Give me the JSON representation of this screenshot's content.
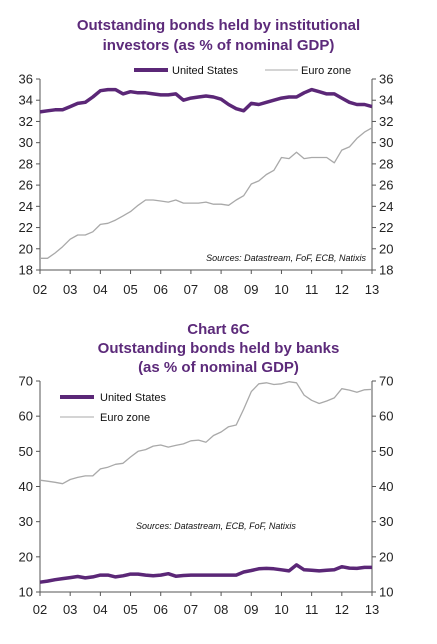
{
  "chart_data": [
    {
      "type": "line",
      "title": "Outstanding bonds held by institutional investors (as % of nominal GDP)",
      "title_lines": [
        "Outstanding bonds held by institutional",
        "investors (as % of nominal GDP)"
      ],
      "x_tick_labels": [
        "02",
        "03",
        "04",
        "05",
        "06",
        "07",
        "08",
        "09",
        "10",
        "11",
        "12",
        "13"
      ],
      "ylim": [
        18,
        36
      ],
      "y_ticks": [
        18,
        20,
        22,
        24,
        26,
        28,
        30,
        32,
        34,
        36
      ],
      "grid": false,
      "legend_position": "top",
      "source": "Sources: Datastream, FoF, ECB, Natixis",
      "series": [
        {
          "name": "United States",
          "color": "#5b2777",
          "x": [
            2002.0,
            2002.25,
            2002.5,
            2002.75,
            2003.0,
            2003.25,
            2003.5,
            2003.75,
            2004.0,
            2004.25,
            2004.5,
            2004.75,
            2005.0,
            2005.25,
            2005.5,
            2005.75,
            2006.0,
            2006.25,
            2006.5,
            2006.75,
            2007.0,
            2007.25,
            2007.5,
            2007.75,
            2008.0,
            2008.25,
            2008.5,
            2008.75,
            2009.0,
            2009.25,
            2009.5,
            2009.75,
            2010.0,
            2010.25,
            2010.5,
            2010.75,
            2011.0,
            2011.25,
            2011.5,
            2011.75,
            2012.0,
            2012.25,
            2012.5,
            2012.75,
            2013.0
          ],
          "values": [
            32.9,
            33.0,
            33.1,
            33.1,
            33.4,
            33.7,
            33.8,
            34.3,
            34.9,
            35.0,
            35.0,
            34.6,
            34.8,
            34.7,
            34.7,
            34.6,
            34.5,
            34.5,
            34.6,
            34.0,
            34.2,
            34.3,
            34.4,
            34.3,
            34.1,
            33.6,
            33.2,
            33.0,
            33.7,
            33.6,
            33.8,
            34.0,
            34.2,
            34.3,
            34.3,
            34.7,
            35.0,
            34.8,
            34.6,
            34.6,
            34.2,
            33.8,
            33.6,
            33.6,
            33.4
          ]
        },
        {
          "name": "Euro zone",
          "color": "#a9a9a9",
          "x": [
            2002.0,
            2002.25,
            2002.5,
            2002.75,
            2003.0,
            2003.25,
            2003.5,
            2003.75,
            2004.0,
            2004.25,
            2004.5,
            2004.75,
            2005.0,
            2005.25,
            2005.5,
            2005.75,
            2006.0,
            2006.25,
            2006.5,
            2006.75,
            2007.0,
            2007.25,
            2007.5,
            2007.75,
            2008.0,
            2008.25,
            2008.5,
            2008.75,
            2009.0,
            2009.25,
            2009.5,
            2009.75,
            2010.0,
            2010.25,
            2010.5,
            2010.75,
            2011.0,
            2011.25,
            2011.5,
            2011.75,
            2012.0,
            2012.25,
            2012.5,
            2012.75,
            2013.0
          ],
          "values": [
            19.1,
            19.1,
            19.6,
            20.2,
            20.9,
            21.3,
            21.3,
            21.6,
            22.3,
            22.4,
            22.7,
            23.1,
            23.5,
            24.1,
            24.6,
            24.6,
            24.5,
            24.4,
            24.6,
            24.3,
            24.3,
            24.3,
            24.4,
            24.2,
            24.2,
            24.1,
            24.6,
            25.0,
            26.1,
            26.4,
            27.0,
            27.4,
            28.6,
            28.5,
            29.1,
            28.5,
            28.6,
            28.6,
            28.6,
            28.1,
            29.3,
            29.6,
            30.4,
            31.0,
            31.4
          ]
        }
      ]
    },
    {
      "type": "line",
      "title": "Chart 6C Outstanding bonds held by banks (as % of nominal GDP)",
      "title_lines": [
        "Chart 6C",
        "Outstanding bonds held by banks",
        "(as % of nominal GDP)"
      ],
      "x_tick_labels": [
        "02",
        "03",
        "04",
        "05",
        "06",
        "07",
        "08",
        "09",
        "10",
        "11",
        "12",
        "13"
      ],
      "ylim": [
        10,
        70
      ],
      "y_ticks": [
        10,
        20,
        30,
        40,
        50,
        60,
        70
      ],
      "grid": false,
      "legend_position": "top-left",
      "source": "Sources: Datastream, ECB, FoF, Natixis",
      "series": [
        {
          "name": "United States",
          "color": "#5b2777",
          "x": [
            2002.0,
            2002.25,
            2002.5,
            2002.75,
            2003.0,
            2003.25,
            2003.5,
            2003.75,
            2004.0,
            2004.25,
            2004.5,
            2004.75,
            2005.0,
            2005.25,
            2005.5,
            2005.75,
            2006.0,
            2006.25,
            2006.5,
            2006.75,
            2007.0,
            2007.25,
            2007.5,
            2007.75,
            2008.0,
            2008.25,
            2008.5,
            2008.75,
            2009.0,
            2009.25,
            2009.5,
            2009.75,
            2010.0,
            2010.25,
            2010.5,
            2010.75,
            2011.0,
            2011.25,
            2011.5,
            2011.75,
            2012.0,
            2012.25,
            2012.5,
            2012.75,
            2013.0
          ],
          "values": [
            12.8,
            13.1,
            13.5,
            13.8,
            14.1,
            14.4,
            14.0,
            14.3,
            14.8,
            14.8,
            14.3,
            14.6,
            15.1,
            15.1,
            14.8,
            14.6,
            14.8,
            15.2,
            14.5,
            14.7,
            14.8,
            14.8,
            14.8,
            14.8,
            14.8,
            14.8,
            14.8,
            15.7,
            16.1,
            16.6,
            16.7,
            16.6,
            16.3,
            16.0,
            17.7,
            16.3,
            16.2,
            16.0,
            16.2,
            16.3,
            17.2,
            16.8,
            16.7,
            17.0,
            17.0
          ]
        },
        {
          "name": "Euro zone",
          "color": "#a9a9a9",
          "x": [
            2002.0,
            2002.25,
            2002.5,
            2002.75,
            2003.0,
            2003.25,
            2003.5,
            2003.75,
            2004.0,
            2004.25,
            2004.5,
            2004.75,
            2005.0,
            2005.25,
            2005.5,
            2005.75,
            2006.0,
            2006.25,
            2006.5,
            2006.75,
            2007.0,
            2007.25,
            2007.5,
            2007.75,
            2008.0,
            2008.25,
            2008.5,
            2008.75,
            2009.0,
            2009.25,
            2009.5,
            2009.75,
            2010.0,
            2010.25,
            2010.5,
            2010.75,
            2011.0,
            2011.25,
            2011.5,
            2011.75,
            2012.0,
            2012.25,
            2012.5,
            2012.75,
            2013.0
          ],
          "values": [
            41.8,
            41.5,
            41.2,
            40.8,
            42.0,
            42.6,
            43.0,
            43.0,
            45.0,
            45.5,
            46.3,
            46.6,
            48.4,
            50.0,
            50.5,
            51.5,
            51.8,
            51.2,
            51.7,
            52.1,
            53.0,
            53.2,
            52.6,
            54.5,
            55.5,
            57.0,
            57.5,
            62.0,
            67.0,
            69.2,
            69.5,
            69.0,
            69.2,
            69.8,
            69.5,
            66.0,
            64.5,
            63.6,
            64.3,
            65.2,
            67.8,
            67.4,
            66.8,
            67.5,
            67.6
          ]
        }
      ]
    }
  ]
}
